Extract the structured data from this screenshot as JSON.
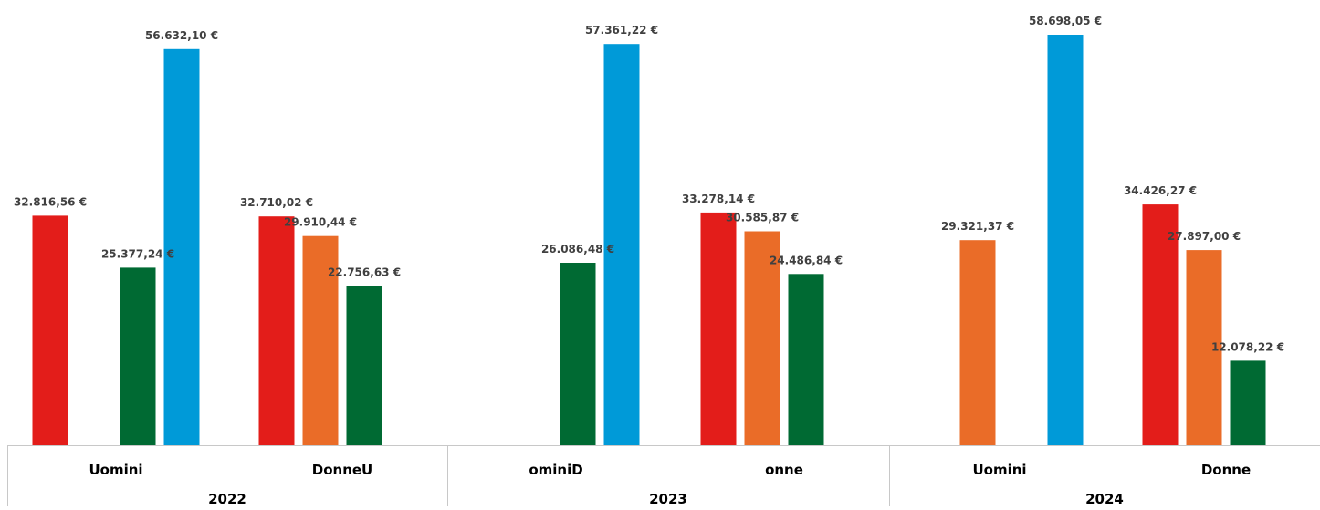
{
  "chart_data": {
    "type": "bar",
    "title": "",
    "xlabel": "",
    "ylabel": "",
    "ylim": [
      0,
      60000
    ],
    "grid": false,
    "legend": "none",
    "colors": {
      "red": "#e31d1a",
      "orange": "#ea6c28",
      "green": "#006a33",
      "blue": "#009ad8",
      "label": "#404040",
      "axis": "#c8c8c8"
    },
    "groups": [
      {
        "year": "2022",
        "categories": [
          {
            "label": "Uomini",
            "bars": [
              {
                "color": "red",
                "value": 32816.56,
                "label": "32.816,56 €"
              },
              {
                "color": "green",
                "value": 25377.24,
                "label": "25.377,24 €"
              },
              {
                "color": "blue",
                "value": 56632.1,
                "label": "56.632,10 €"
              }
            ]
          },
          {
            "label": "DonneU",
            "bars": [
              {
                "color": "red",
                "value": 32710.02,
                "label": "32.710,02 €"
              },
              {
                "color": "orange",
                "value": 29910.44,
                "label": "29.910,44 €"
              },
              {
                "color": "green",
                "value": 22756.63,
                "label": "22.756,63 €"
              }
            ]
          }
        ]
      },
      {
        "year": "2023",
        "categories": [
          {
            "label": "ominiD",
            "bars": [
              {
                "color": "green",
                "value": 26086.48,
                "label": "26.086,48 €"
              },
              {
                "color": "blue",
                "value": 57361.22,
                "label": "57.361,22 €"
              }
            ]
          },
          {
            "label": "onne",
            "bars": [
              {
                "color": "red",
                "value": 33278.14,
                "label": "33.278,14 €"
              },
              {
                "color": "orange",
                "value": 30585.87,
                "label": "30.585,87 €"
              },
              {
                "color": "green",
                "value": 24486.84,
                "label": "24.486,84 €"
              }
            ]
          }
        ]
      },
      {
        "year": "2024",
        "categories": [
          {
            "label": "Uomini",
            "bars": [
              {
                "color": "orange",
                "value": 29321.37,
                "label": "29.321,37 €"
              },
              {
                "color": "blue",
                "value": 58698.05,
                "label": "58.698,05 €"
              }
            ]
          },
          {
            "label": "Donne",
            "bars": [
              {
                "color": "red",
                "value": 34426.27,
                "label": "34.426,27 €"
              },
              {
                "color": "orange",
                "value": 27897.0,
                "label": "27.897,00 €"
              },
              {
                "color": "green",
                "value": 12078.22,
                "label": "12.078,22 €"
              }
            ]
          }
        ]
      }
    ]
  }
}
